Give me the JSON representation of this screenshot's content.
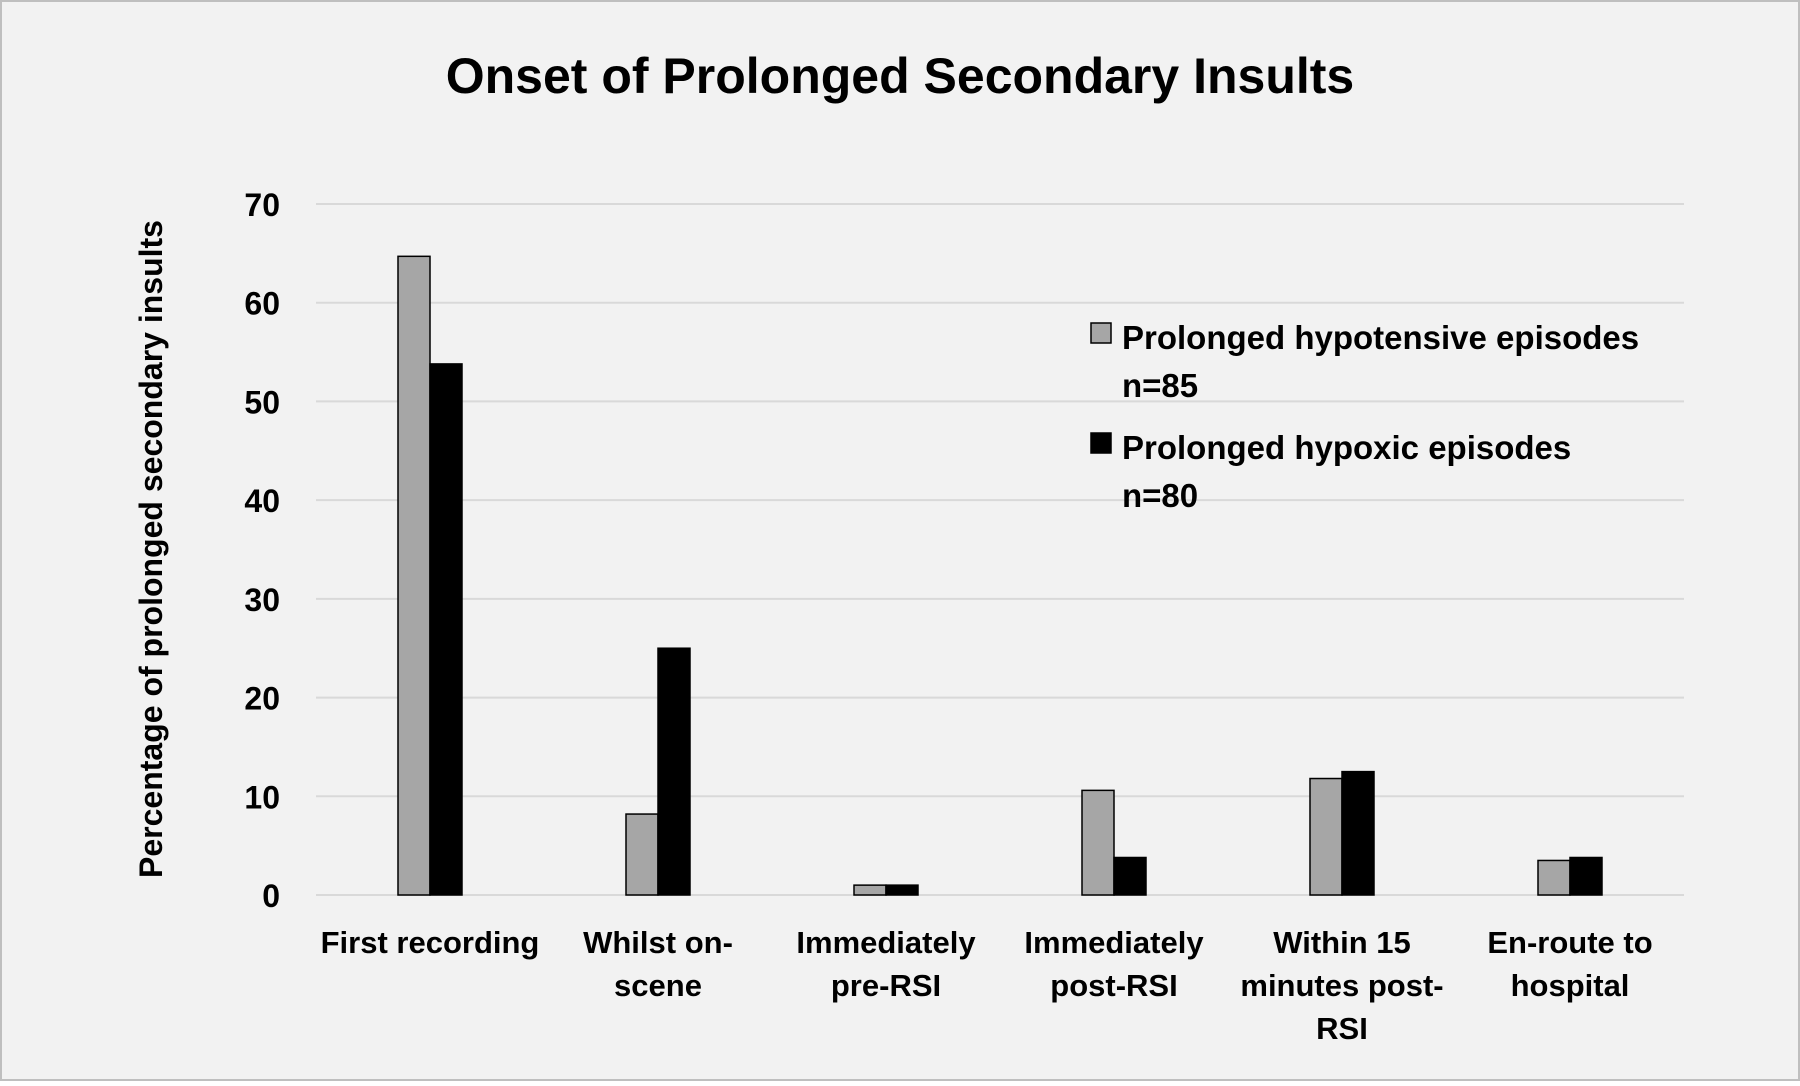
{
  "chart_data": {
    "type": "bar",
    "title": "Onset of Prolonged Secondary Insults",
    "xlabel": "",
    "ylabel": "Percentage of prolonged secondary insults",
    "ylim": [
      0,
      70
    ],
    "yticks": [
      0,
      10,
      20,
      30,
      40,
      50,
      60,
      70
    ],
    "grid": true,
    "legend_position": "top-right",
    "categories": [
      [
        "First recording"
      ],
      [
        "Whilst on-",
        "scene"
      ],
      [
        "Immediately",
        "pre-RSI"
      ],
      [
        "Immediately",
        "post-RSI"
      ],
      [
        "Within 15",
        "minutes post-",
        "RSI"
      ],
      [
        "En-route to",
        "hospital"
      ]
    ],
    "series": [
      {
        "name": "Prolonged hypotensive episodes n=85",
        "legend_lines": [
          "Prolonged hypotensive episodes",
          "n=85"
        ],
        "color": "#a6a6a6",
        "values": [
          64.7,
          8.2,
          1.0,
          10.6,
          11.8,
          3.5
        ]
      },
      {
        "name": "Prolonged hypoxic episodes n=80",
        "legend_lines": [
          "Prolonged hypoxic episodes",
          "n=80"
        ],
        "color": "#000000",
        "values": [
          53.8,
          25.0,
          1.0,
          3.8,
          12.5,
          3.8
        ]
      }
    ]
  },
  "colors": {
    "background": "#f2f2f2",
    "border": "#bfbfbf",
    "gridline": "#d9d9d9",
    "bar_outline": "#000000"
  }
}
